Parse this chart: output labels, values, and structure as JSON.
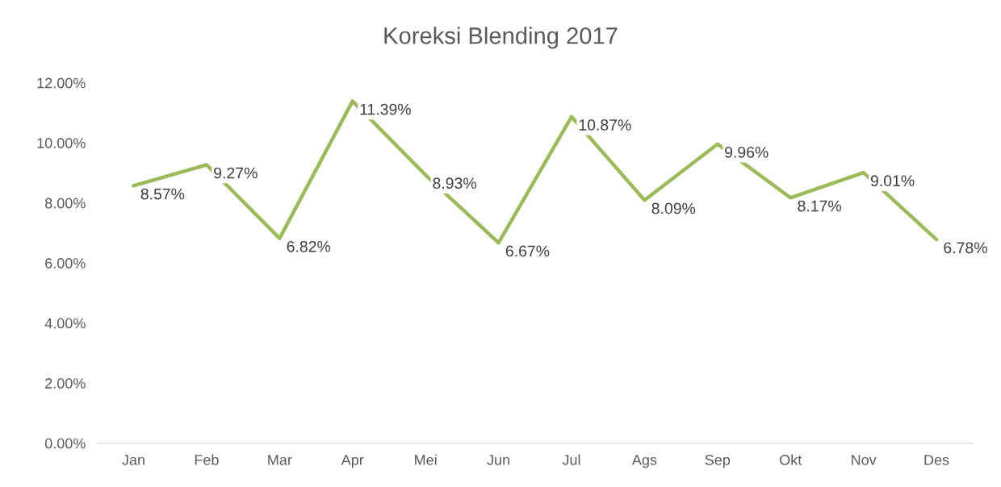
{
  "chart_data": {
    "type": "line",
    "title": "Koreksi Blending 2017",
    "categories": [
      "Jan",
      "Feb",
      "Mar",
      "Apr",
      "Mei",
      "Jun",
      "Jul",
      "Ags",
      "Sep",
      "Okt",
      "Nov",
      "Des"
    ],
    "series": [
      {
        "color": "#9bbb59",
        "values": [
          8.57,
          9.27,
          6.82,
          11.39,
          8.93,
          6.67,
          10.87,
          8.09,
          9.96,
          8.17,
          9.01,
          6.78
        ],
        "value_labels": [
          "8.57%",
          "9.27%",
          "6.82%",
          "11.39%",
          "8.93%",
          "6.67%",
          "10.87%",
          "8.09%",
          "9.96%",
          "8.17%",
          "9.01%",
          "6.78%"
        ]
      }
    ],
    "ylim": [
      0,
      12
    ],
    "yticks": [
      {
        "value": 0,
        "label": "0.00%"
      },
      {
        "value": 2,
        "label": "2.00%"
      },
      {
        "value": 4,
        "label": "4.00%"
      },
      {
        "value": 6,
        "label": "6.00%"
      },
      {
        "value": 8,
        "label": "8.00%"
      },
      {
        "value": 10,
        "label": "10.00%"
      },
      {
        "value": 12,
        "label": "12.00%"
      }
    ],
    "grid": false,
    "legend": false,
    "marker": "none",
    "line_style": "solid"
  }
}
